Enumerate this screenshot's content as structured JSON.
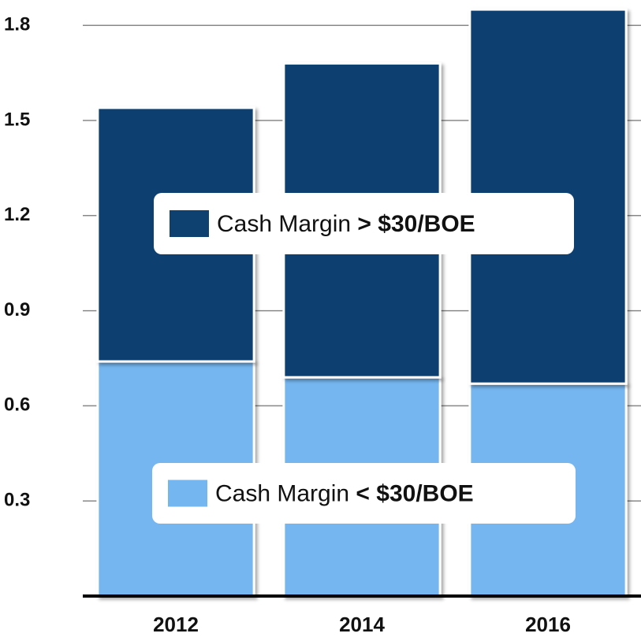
{
  "chart_data": {
    "type": "stacked_bar",
    "categories": [
      "2012",
      "2014",
      "2016"
    ],
    "series": [
      {
        "name": "Cash Margin < $30/BOE",
        "color": "#74b6f0",
        "values": [
          0.74,
          0.69,
          0.67
        ]
      },
      {
        "name": "Cash Margin > $30/BOE",
        "color": "#0e4170",
        "values": [
          0.8,
          0.99,
          1.18
        ]
      }
    ],
    "ylim": [
      0,
      1.88
    ],
    "yticks": [
      0.3,
      0.6,
      0.9,
      1.2,
      1.5,
      1.8
    ],
    "grid": true
  }
}
